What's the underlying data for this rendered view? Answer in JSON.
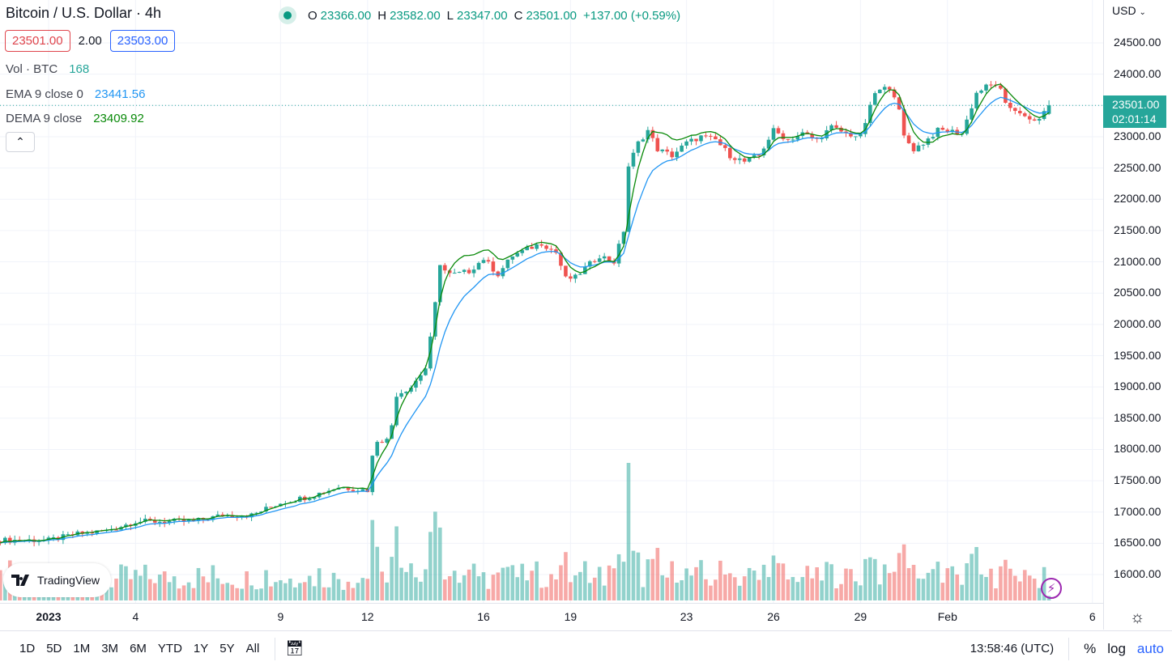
{
  "header": {
    "title": "Bitcoin / U.S. Dollar · 4h",
    "o_label": "O",
    "o": "23366.00",
    "h_label": "H",
    "h": "23582.00",
    "l_label": "L",
    "l": "23347.00",
    "c_label": "C",
    "c": "23501.00",
    "change": "+137.00 (+0.59%)",
    "bid": "23501.00",
    "spread": "2.00",
    "ask": "23503.00"
  },
  "indicators": [
    {
      "label": "Vol · BTC",
      "value": "168",
      "color": "#26a69a"
    },
    {
      "label": "EMA 9 close 0",
      "value": "23441.56",
      "color": "#2196f3"
    },
    {
      "label": "DEMA 9 close",
      "value": "23409.92",
      "color": "#0a8a0a"
    }
  ],
  "price_axis": {
    "currency": "USD",
    "current": "23501.00",
    "countdown": "02:01:14"
  },
  "bottom": {
    "ranges": [
      "1D",
      "5D",
      "1M",
      "3M",
      "6M",
      "YTD",
      "1Y",
      "5Y",
      "All"
    ],
    "clock": "13:58:46 (UTC)",
    "percent": "%",
    "log": "log",
    "auto": "auto"
  },
  "logo": "TradingView",
  "colors": {
    "up": "#26a69a",
    "down": "#ef5350",
    "ema": "#2196f3",
    "dema": "#0a8a0a",
    "auto": "#2962ff"
  },
  "chart_data": {
    "type": "candlestick",
    "title": "Bitcoin / U.S. Dollar · 4h",
    "interval": "4h",
    "ylim": [
      15600,
      24800
    ],
    "yticks": [
      16000,
      16500,
      17000,
      17500,
      18000,
      18500,
      19000,
      19500,
      20000,
      20500,
      21000,
      21500,
      22000,
      22500,
      23000,
      23500,
      24000,
      24500
    ],
    "xticks": [
      {
        "label": "2023",
        "date": "2023-01-01"
      },
      {
        "label": "4",
        "date": "2023-01-04"
      },
      {
        "label": "9",
        "date": "2023-01-09"
      },
      {
        "label": "12",
        "date": "2023-01-12"
      },
      {
        "label": "16",
        "date": "2023-01-16"
      },
      {
        "label": "19",
        "date": "2023-01-19"
      },
      {
        "label": "23",
        "date": "2023-01-23"
      },
      {
        "label": "26",
        "date": "2023-01-26"
      },
      {
        "label": "29",
        "date": "2023-01-29"
      },
      {
        "label": "Feb",
        "date": "2023-02-01"
      },
      {
        "label": "6",
        "date": "2023-02-06"
      }
    ],
    "approx_close": [
      [
        "2022-12-30T08:00",
        16550
      ],
      [
        "2023-01-01T00:00",
        16550
      ],
      [
        "2023-01-02T00:00",
        16650
      ],
      [
        "2023-01-03T00:00",
        16700
      ],
      [
        "2023-01-04T00:00",
        16850
      ],
      [
        "2023-01-05T00:00",
        16850
      ],
      [
        "2023-01-06T00:00",
        16850
      ],
      [
        "2023-01-07T00:00",
        16950
      ],
      [
        "2023-01-08T00:00",
        16950
      ],
      [
        "2023-01-09T00:00",
        17150
      ],
      [
        "2023-01-10T00:00",
        17250
      ],
      [
        "2023-01-11T00:00",
        17400
      ],
      [
        "2023-01-12T00:00",
        17350
      ],
      [
        "2023-01-12T06:00",
        18150
      ],
      [
        "2023-01-12T18:00",
        18150
      ],
      [
        "2023-01-13T00:00",
        18880
      ],
      [
        "2023-01-13T12:00",
        19000
      ],
      [
        "2023-01-14T00:00",
        19300
      ],
      [
        "2023-01-14T06:00",
        20000
      ],
      [
        "2023-01-14T12:00",
        20980
      ],
      [
        "2023-01-14T18:00",
        20800
      ],
      [
        "2023-01-15T00:00",
        20800
      ],
      [
        "2023-01-15T12:00",
        20850
      ],
      [
        "2023-01-16T00:00",
        21050
      ],
      [
        "2023-01-16T12:00",
        20800
      ],
      [
        "2023-01-17T00:00",
        21100
      ],
      [
        "2023-01-17T12:00",
        21200
      ],
      [
        "2023-01-18T00:00",
        21300
      ],
      [
        "2023-01-18T12:00",
        21150
      ],
      [
        "2023-01-18T20:00",
        20730
      ],
      [
        "2023-01-19T04:00",
        20750
      ],
      [
        "2023-01-19T12:00",
        20900
      ],
      [
        "2023-01-20T00:00",
        21100
      ],
      [
        "2023-01-20T12:00",
        21000
      ],
      [
        "2023-01-20T20:00",
        21500
      ],
      [
        "2023-01-21T00:00",
        22530
      ],
      [
        "2023-01-21T08:00",
        22900
      ],
      [
        "2023-01-21T16:00",
        23100
      ],
      [
        "2023-01-22T00:00",
        22800
      ],
      [
        "2023-01-22T12:00",
        22700
      ],
      [
        "2023-01-23T00:00",
        22900
      ],
      [
        "2023-01-23T12:00",
        23000
      ],
      [
        "2023-01-24T00:00",
        22950
      ],
      [
        "2023-01-24T12:00",
        22700
      ],
      [
        "2023-01-25T00:00",
        22600
      ],
      [
        "2023-01-25T12:00",
        22700
      ],
      [
        "2023-01-26T00:00",
        23100
      ],
      [
        "2023-01-26T12:00",
        22950
      ],
      [
        "2023-01-27T00:00",
        23050
      ],
      [
        "2023-01-27T12:00",
        22950
      ],
      [
        "2023-01-28T00:00",
        23150
      ],
      [
        "2023-01-28T12:00",
        23050
      ],
      [
        "2023-01-29T00:00",
        23000
      ],
      [
        "2023-01-29T12:00",
        23700
      ],
      [
        "2023-01-30T00:00",
        23800
      ],
      [
        "2023-01-30T06:00",
        23600
      ],
      [
        "2023-01-30T12:00",
        23000
      ],
      [
        "2023-01-30T20:00",
        22800
      ],
      [
        "2023-01-31T04:00",
        22900
      ],
      [
        "2023-01-31T16:00",
        23100
      ],
      [
        "2023-02-01T00:00",
        23100
      ],
      [
        "2023-02-01T12:00",
        23050
      ],
      [
        "2023-02-02T00:00",
        23700
      ],
      [
        "2023-02-02T08:00",
        23800
      ],
      [
        "2023-02-02T18:00",
        23850
      ],
      [
        "2023-02-03T00:00",
        23500
      ],
      [
        "2023-02-03T12:00",
        23400
      ],
      [
        "2023-02-03T18:00",
        23250
      ],
      [
        "2023-02-04T00:00",
        23250
      ],
      [
        "2023-02-04T08:00",
        23366
      ],
      [
        "2023-02-04T12:00",
        23501
      ]
    ],
    "last_candle": {
      "open": 23366,
      "high": 23582,
      "low": 23347,
      "close": 23501,
      "volume": 168
    },
    "overlays": [
      "EMA 9",
      "DEMA 9"
    ]
  }
}
